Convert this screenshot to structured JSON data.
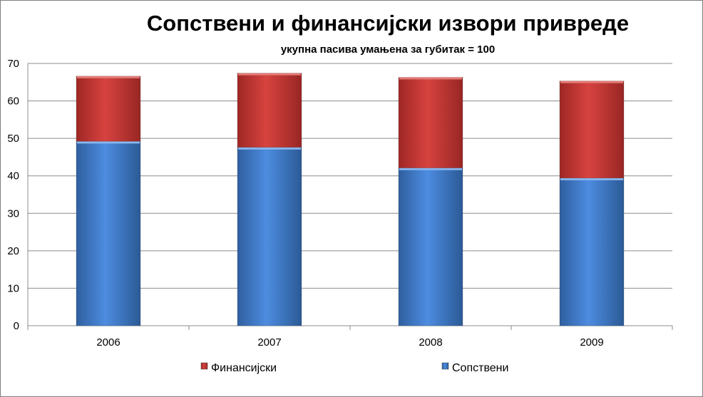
{
  "chart_data": {
    "type": "bar",
    "stacked": true,
    "title": "Сопствени и финансијски извори привреде",
    "subtitle": "укупна пасива умањена за губитак = 100",
    "categories": [
      "2006",
      "2007",
      "2008",
      "2009"
    ],
    "series": [
      {
        "name": "Сопствени",
        "color": "#4a86d8",
        "values": [
          49.2,
          47.6,
          42.1,
          39.4
        ]
      },
      {
        "name": "Финансијски",
        "color": "#cd3a38",
        "values": [
          17.4,
          19.8,
          24.2,
          25.9
        ]
      }
    ],
    "ylim": [
      0,
      70
    ],
    "yticks": [
      "0",
      "10",
      "20",
      "30",
      "40",
      "50",
      "60",
      "70"
    ],
    "grid": true,
    "legend": {
      "position": "bottom",
      "order": [
        "Финансијски",
        "Сопствени"
      ]
    }
  }
}
